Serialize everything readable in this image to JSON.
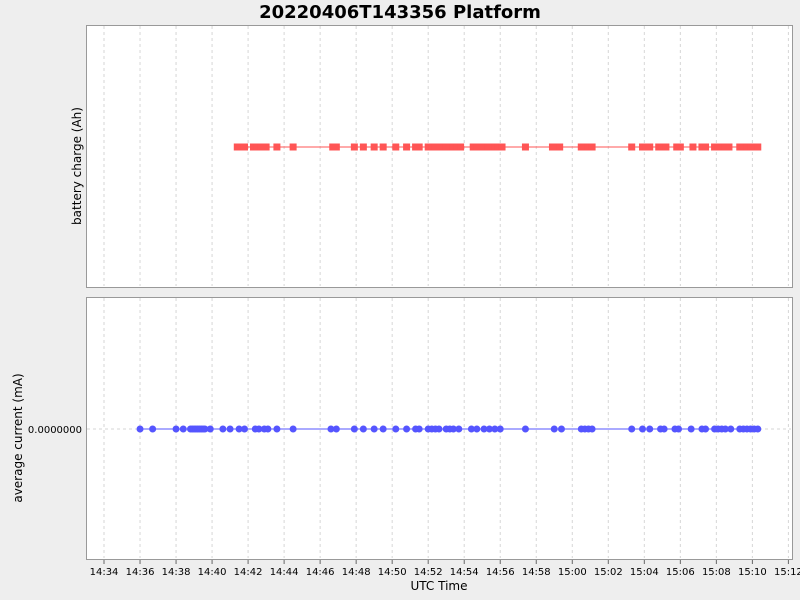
{
  "chart_data": {
    "type": "scatter",
    "title": "20220406T143356 Platform",
    "xlabel": "UTC Time",
    "x_ticks": [
      "14:34",
      "14:36",
      "14:38",
      "14:40",
      "14:42",
      "14:44",
      "14:46",
      "14:48",
      "14:50",
      "14:52",
      "14:54",
      "14:56",
      "14:58",
      "15:00",
      "15:02",
      "15:04",
      "15:06",
      "15:08",
      "15:10",
      "15:12"
    ],
    "x_range": [
      "14:33",
      "15:12.2"
    ],
    "grid": true,
    "panels": [
      {
        "ylabel": "battery charge (Ah)",
        "y_ticks": [],
        "marker": "square",
        "color": "#ff5555",
        "series": [
          {
            "x": [
              "14:41.4",
              "14:41.6",
              "14:41.8",
              "14:42.3",
              "14:42.5",
              "14:42.7",
              "14:42.9",
              "14:43.0",
              "14:43.6",
              "14:44.5",
              "14:46.7",
              "14:46.9",
              "14:47.9",
              "14:48.4",
              "14:49.0",
              "14:49.5",
              "14:50.2",
              "14:50.8",
              "14:51.3",
              "14:51.5",
              "14:52.0",
              "14:52.2",
              "14:52.4",
              "14:52.6",
              "14:52.8",
              "14:53.0",
              "14:53.2",
              "14:53.4",
              "14:53.6",
              "14:53.8",
              "14:54.5",
              "14:54.7",
              "14:54.9",
              "14:55.1",
              "14:55.3",
              "14:55.5",
              "14:55.7",
              "14:55.9",
              "14:56.1",
              "14:57.4",
              "14:58.9",
              "14:59.1",
              "14:59.3",
              "15:00.5",
              "15:00.7",
              "15:00.9",
              "15:01.1",
              "15:03.3",
              "15:03.9",
              "15:04.1",
              "15:04.3",
              "15:04.8",
              "15:05.0",
              "15:05.2",
              "15:05.8",
              "15:06.0",
              "15:06.7",
              "15:07.2",
              "15:07.4",
              "15:07.9",
              "15:08.1",
              "15:08.3",
              "15:08.5",
              "15:08.7",
              "15:09.3",
              "15:09.5",
              "15:09.7",
              "15:09.9",
              "15:10.1",
              "15:10.3"
            ],
            "y": [
              0,
              0,
              0,
              0,
              0,
              0,
              0,
              0,
              0,
              0,
              0,
              0,
              0,
              0,
              0,
              0,
              0,
              0,
              0,
              0,
              0,
              0,
              0,
              0,
              0,
              0,
              0,
              0,
              0,
              0,
              0,
              0,
              0,
              0,
              0,
              0,
              0,
              0,
              0,
              0,
              0,
              0,
              0,
              0,
              0,
              0,
              0,
              0,
              0,
              0,
              0,
              0,
              0,
              0,
              0,
              0,
              0,
              0,
              0,
              0,
              0,
              0,
              0,
              0,
              0,
              0,
              0,
              0,
              0,
              0
            ]
          }
        ]
      },
      {
        "ylabel": "average current (mA)",
        "y_ticks": [
          "0.0000000"
        ],
        "marker": "circle",
        "color": "#5555ff",
        "series": [
          {
            "x": [
              "14:36.0",
              "14:36.7",
              "14:38.0",
              "14:38.4",
              "14:38.8",
              "14:38.9",
              "14:39.0",
              "14:39.1",
              "14:39.2",
              "14:39.3",
              "14:39.4",
              "14:39.5",
              "14:39.6",
              "14:39.9",
              "14:40.6",
              "14:41.0",
              "14:41.5",
              "14:41.8",
              "14:42.4",
              "14:42.6",
              "14:42.9",
              "14:43.1",
              "14:43.6",
              "14:44.5",
              "14:46.6",
              "14:46.9",
              "14:47.9",
              "14:48.4",
              "14:49.0",
              "14:49.5",
              "14:50.2",
              "14:50.8",
              "14:51.3",
              "14:51.5",
              "14:52.0",
              "14:52.2",
              "14:52.4",
              "14:52.6",
              "14:53.0",
              "14:53.2",
              "14:53.4",
              "14:53.7",
              "14:54.4",
              "14:54.7",
              "14:55.1",
              "14:55.4",
              "14:55.7",
              "14:56.0",
              "14:57.4",
              "14:59.0",
              "14:59.4",
              "15:00.5",
              "15:00.7",
              "15:00.9",
              "15:01.1",
              "15:03.3",
              "15:03.9",
              "15:04.3",
              "15:04.9",
              "15:05.1",
              "15:05.7",
              "15:05.9",
              "15:06.6",
              "15:07.2",
              "15:07.4",
              "15:07.9",
              "15:08.1",
              "15:08.3",
              "15:08.5",
              "15:08.8",
              "15:09.3",
              "15:09.5",
              "15:09.7",
              "15:09.9",
              "15:10.1",
              "15:10.3"
            ],
            "y": [
              0,
              0,
              0,
              0,
              0,
              0,
              0,
              0,
              0,
              0,
              0,
              0,
              0,
              0,
              0,
              0,
              0,
              0,
              0,
              0,
              0,
              0,
              0,
              0,
              0,
              0,
              0,
              0,
              0,
              0,
              0,
              0,
              0,
              0,
              0,
              0,
              0,
              0,
              0,
              0,
              0,
              0,
              0,
              0,
              0,
              0,
              0,
              0,
              0,
              0,
              0,
              0,
              0,
              0,
              0,
              0,
              0,
              0,
              0,
              0,
              0,
              0,
              0,
              0,
              0,
              0,
              0,
              0,
              0,
              0,
              0,
              0,
              0,
              0,
              0,
              0
            ]
          }
        ]
      }
    ]
  }
}
